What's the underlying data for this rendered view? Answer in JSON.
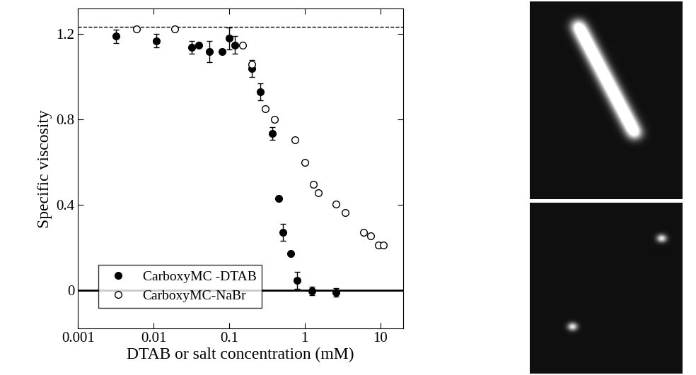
{
  "chart_data": {
    "type": "scatter",
    "x_label": "DTAB or salt concentration (mM)",
    "y_label": "Specific viscosity",
    "log": "x",
    "xlim": [
      0.001,
      20
    ],
    "ylim": [
      -0.18,
      1.32
    ],
    "xticks": [
      0.001,
      0.01,
      0.1,
      1,
      10
    ],
    "yticks": [
      0,
      0.4,
      0.8,
      1.2
    ],
    "legend": "lower left",
    "reference_lines": [
      {
        "value": 1.233,
        "line_style": "dashed"
      },
      {
        "value": 0,
        "line_style": "solid"
      }
    ],
    "series": [
      {
        "name": "CarboxyMC -DTAB",
        "color": "#000000",
        "marker": "filled",
        "x": [
          0.0032,
          0.011,
          0.032,
          0.04,
          0.055,
          0.08,
          0.1,
          0.12,
          0.2,
          0.26,
          0.37,
          0.45,
          0.52,
          0.65,
          0.8,
          1.25,
          2.6
        ],
        "values": [
          1.19,
          1.17,
          1.14,
          1.15,
          1.12,
          1.12,
          1.18,
          1.15,
          1.04,
          0.93,
          0.735,
          0.43,
          0.27,
          0.17,
          0.045,
          -0.005,
          -0.01
        ],
        "errors": [
          0.03,
          0.03,
          0.03,
          null,
          0.05,
          null,
          0.05,
          0.04,
          0.04,
          0.04,
          0.03,
          null,
          0.04,
          null,
          0.04,
          0.02,
          0.02
        ]
      },
      {
        "name": "CarboxyMC-NaBr",
        "color": "#000000",
        "marker": "open",
        "x": [
          0.006,
          0.019,
          0.15,
          0.2,
          0.3,
          0.4,
          0.75,
          1.0,
          1.3,
          1.5,
          2.6,
          3.4,
          6,
          7.5,
          9.5,
          11
        ],
        "values": [
          1.225,
          1.225,
          1.15,
          1.06,
          0.85,
          0.8,
          0.705,
          0.6,
          0.495,
          0.455,
          0.405,
          0.365,
          0.27,
          0.255,
          0.21,
          0.21
        ]
      }
    ]
  }
}
